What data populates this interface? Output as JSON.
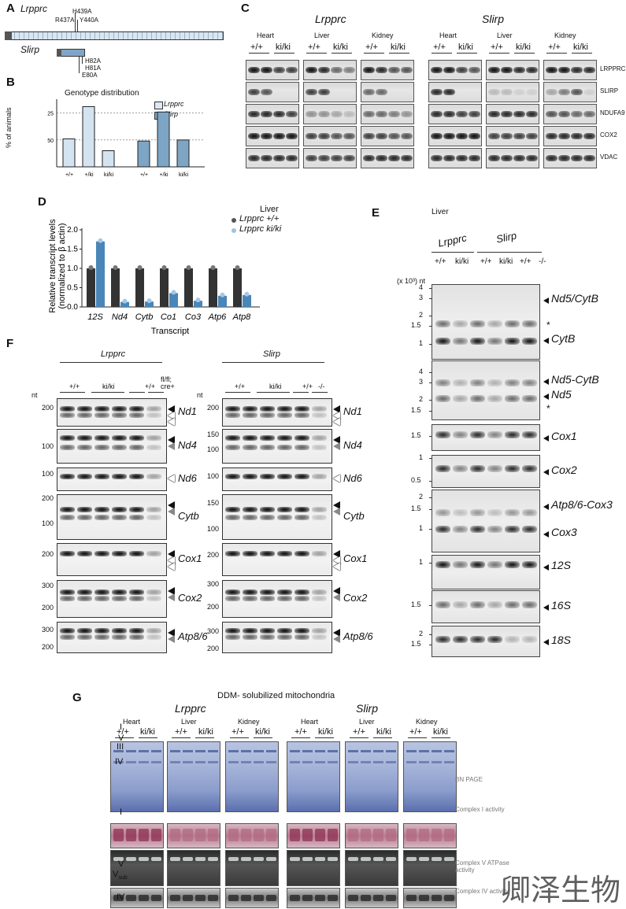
{
  "panelA": {
    "label": "A",
    "gene1": "Lrpprc",
    "gene2": "Slirp",
    "mut1": [
      "H439A",
      "R437A",
      "Y440A"
    ],
    "mut2": [
      "H82A",
      "H81A",
      "E80A"
    ]
  },
  "panelB": {
    "label": "B",
    "title": "Genotype distribution",
    "ylabel": "% of animals",
    "legend1": "Lrpprc",
    "legend2": "Slirp",
    "yticks": [
      "50",
      "25"
    ],
    "xticks": [
      "+/+",
      "+/ki",
      "ki/ki",
      "+/+",
      "+/ki",
      "ki/ki"
    ]
  },
  "chart_data": [
    {
      "type": "bar",
      "title": "Genotype distribution",
      "ylabel": "% of animals",
      "categories": [
        "+/+",
        "+/ki",
        "ki/ki"
      ],
      "series": [
        {
          "name": "Lrpprc",
          "values": [
            26,
            56,
            15
          ],
          "color": "#d4e3f0"
        },
        {
          "name": "Slirp",
          "values": [
            24,
            51,
            25
          ],
          "color": "#7fa5c4"
        }
      ],
      "ylim": [
        0,
        60
      ],
      "gridlines": [
        25,
        50
      ]
    },
    {
      "type": "bar",
      "title": "",
      "xlabel": "Transcript",
      "ylabel": "Relative transcript levels (normalized to β actin)",
      "categories": [
        "12S",
        "Nd4",
        "Cytb",
        "Co1",
        "Co3",
        "Atp6",
        "Atp8"
      ],
      "series": [
        {
          "name": "Lrpprc +/+",
          "values": [
            1.0,
            1.0,
            1.0,
            1.0,
            1.0,
            1.0,
            1.0
          ],
          "color": "#333333"
        },
        {
          "name": "Lrpprc ki/ki",
          "values": [
            1.7,
            0.13,
            0.14,
            0.36,
            0.16,
            0.29,
            0.31
          ],
          "color": "#4a86b8"
        }
      ],
      "ylim": [
        0,
        2.0
      ],
      "yticks": [
        0,
        0.5,
        1.0,
        1.5,
        2.0
      ]
    }
  ],
  "panelC": {
    "label": "C",
    "group1": "Lrpprc",
    "group2": "Slirp",
    "tissues": [
      "Heart",
      "Liver",
      "Kidney",
      "Heart",
      "Liver",
      "Kidney"
    ],
    "geno1": "+/+",
    "geno2": "ki/ki",
    "proteins": [
      "LRPPRC",
      "SLIRP",
      "NDUFA9",
      "COX2",
      "VDAC"
    ]
  },
  "panelD": {
    "label": "D",
    "legend_title": "Liver",
    "legend1": "Lrpprc +/+",
    "legend2": "Lrpprc ki/ki",
    "yticks": [
      "2.0",
      "1.5",
      "1.0",
      "0.5",
      "0.0"
    ]
  },
  "panelE": {
    "label": "E",
    "tissue": "Liver",
    "group1": "Lrpprc",
    "group2": "Slirp",
    "genos": [
      "+/+",
      "ki/ki",
      "+/+",
      "ki/ki",
      "+/+",
      "-/-"
    ],
    "unit": "(x 10³) nt",
    "blots": [
      {
        "ticks": [
          "4",
          "3",
          "2",
          "1.5",
          "1"
        ],
        "labels": [
          "Nd5/CytB",
          "*",
          "CytB"
        ]
      },
      {
        "ticks": [
          "4",
          "3",
          "2",
          "1.5"
        ],
        "labels": [
          "Nd5-CytB",
          "Nd5",
          "*"
        ]
      },
      {
        "ticks": [
          "1.5"
        ],
        "labels": [
          "Cox1"
        ]
      },
      {
        "ticks": [
          "1",
          "0.5"
        ],
        "labels": [
          "Cox2"
        ]
      },
      {
        "ticks": [
          "2",
          "1.5",
          "1"
        ],
        "labels": [
          "Atp8/6-Cox3",
          "Cox3"
        ]
      },
      {
        "ticks": [
          "1"
        ],
        "labels": [
          "12S"
        ]
      },
      {
        "ticks": [
          "1.5"
        ],
        "labels": [
          "16S"
        ]
      },
      {
        "ticks": [
          "2",
          "1.5"
        ],
        "labels": [
          "18S"
        ]
      }
    ]
  },
  "panelF": {
    "label": "F",
    "group1": "Lrpprc",
    "group2": "Slirp",
    "genos1": [
      "+/+",
      "ki/ki",
      "+/+",
      "fl/fl; cre+"
    ],
    "genos2": [
      "+/+",
      "ki/ki",
      "+/+",
      "-/-"
    ],
    "unit": "nt",
    "gels": [
      {
        "name": "Nd1",
        "ticks1": [
          "200"
        ],
        "ticks2": [
          "200"
        ]
      },
      {
        "name": "Nd4",
        "ticks1": [
          "100"
        ],
        "ticks2": [
          "150",
          "100"
        ]
      },
      {
        "name": "Nd6",
        "ticks1": [
          "100"
        ],
        "ticks2": [
          "100"
        ]
      },
      {
        "name": "Cytb",
        "ticks1": [
          "200",
          "100"
        ],
        "ticks2": [
          "150",
          "100"
        ]
      },
      {
        "name": "Cox1",
        "ticks1": [
          "200"
        ],
        "ticks2": [
          "200"
        ]
      },
      {
        "name": "Cox2",
        "ticks1": [
          "300",
          "200"
        ],
        "ticks2": [
          "300",
          "200"
        ]
      },
      {
        "name": "Atp8/6",
        "ticks1": [
          "300",
          "200"
        ],
        "ticks2": [
          "300",
          "200"
        ]
      }
    ]
  },
  "panelG": {
    "label": "G",
    "title": "DDM- solubilized mitochondria",
    "group1": "Lrpprc",
    "group2": "Slirp",
    "tissues": [
      "Heart",
      "Liver",
      "Kidney",
      "Heart",
      "Liver",
      "Kidney"
    ],
    "geno1": "+/+",
    "geno2": "ki/ki",
    "rowlabels": [
      "I",
      "V",
      "III",
      "IV"
    ],
    "cI": "I",
    "cV": "V",
    "vsub": "V",
    "vsub_sub": "sub",
    "cIV": "IV",
    "side1": "BN PAGE",
    "side2": "Complex I activity",
    "side3": "Complex V ATPase activity",
    "side4": "Complex IV activity"
  },
  "watermark": "卿泽生物"
}
